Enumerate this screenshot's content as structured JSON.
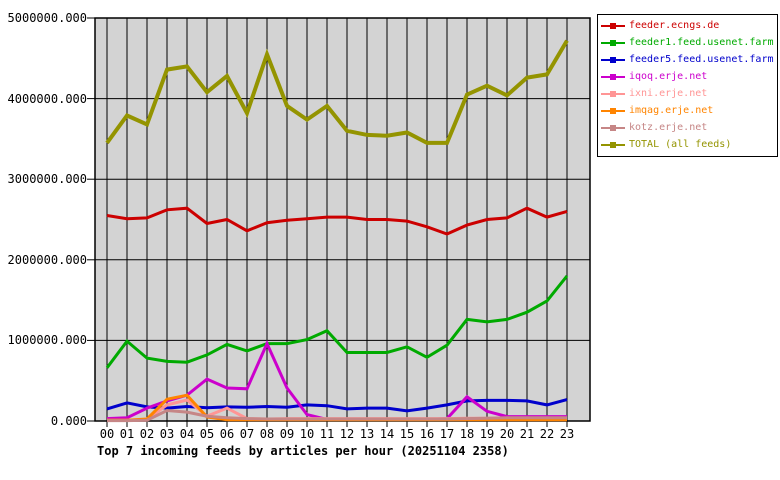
{
  "title": "Top 7 incoming feeds by articles per hour (20251104 2358)",
  "chart_data": {
    "type": "line",
    "title": "Top 7 incoming feeds by articles per hour (20251104 2358)",
    "xlabel": "",
    "ylabel": "",
    "ylim": [
      0,
      5000000
    ],
    "grid": true,
    "plot_background": "#d3d3d3",
    "legend_position": "outside-top-right",
    "x": [
      "00",
      "01",
      "02",
      "03",
      "04",
      "05",
      "06",
      "07",
      "08",
      "09",
      "10",
      "11",
      "12",
      "13",
      "14",
      "15",
      "16",
      "17",
      "18",
      "19",
      "20",
      "21",
      "22",
      "23"
    ],
    "y_ticks": [
      {
        "label": "5000000.000",
        "value": 5000000
      },
      {
        "label": "4000000.000",
        "value": 4000000
      },
      {
        "label": "3000000.000",
        "value": 3000000
      },
      {
        "label": "2000000.000",
        "value": 2000000
      },
      {
        "label": "1000000.000",
        "value": 1000000
      },
      {
        "label": "0.000",
        "value": 0
      }
    ],
    "series": [
      {
        "name": "feeder.ecngs.de",
        "color": "#cc0000",
        "width": 3,
        "values": [
          2550000,
          2510000,
          2520000,
          2620000,
          2640000,
          2450000,
          2500000,
          2360000,
          2460000,
          2490000,
          2510000,
          2530000,
          2530000,
          2500000,
          2500000,
          2480000,
          2410000,
          2320000,
          2430000,
          2500000,
          2520000,
          2640000,
          2530000,
          2600000
        ]
      },
      {
        "name": "feeder1.feed.usenet.farm",
        "color": "#00aa00",
        "width": 3,
        "values": [
          660000,
          990000,
          780000,
          740000,
          730000,
          820000,
          950000,
          870000,
          960000,
          960000,
          1010000,
          1120000,
          850000,
          850000,
          850000,
          920000,
          790000,
          940000,
          1260000,
          1230000,
          1260000,
          1350000,
          1490000,
          1800000
        ]
      },
      {
        "name": "feeder5.feed.usenet.farm",
        "color": "#0000cc",
        "width": 3,
        "values": [
          150000,
          225000,
          175000,
          160000,
          180000,
          165000,
          175000,
          170000,
          180000,
          170000,
          200000,
          190000,
          150000,
          160000,
          160000,
          125000,
          160000,
          200000,
          250000,
          255000,
          255000,
          250000,
          200000,
          265000
        ]
      },
      {
        "name": "iqoq.erje.net",
        "color": "#cc00cc",
        "width": 3,
        "values": [
          30000,
          40000,
          160000,
          250000,
          320000,
          520000,
          410000,
          400000,
          960000,
          410000,
          80000,
          20000,
          20000,
          25000,
          20000,
          20000,
          20000,
          30000,
          300000,
          120000,
          55000,
          55000,
          55000,
          55000
        ]
      },
      {
        "name": "ixni.erje.net",
        "color": "#ff9595",
        "width": 3,
        "values": [
          10000,
          10000,
          20000,
          200000,
          260000,
          60000,
          160000,
          30000,
          25000,
          30000,
          30000,
          30000,
          30000,
          30000,
          30000,
          30000,
          30000,
          30000,
          35000,
          35000,
          35000,
          35000,
          35000,
          30000
        ]
      },
      {
        "name": "imqag.erje.net",
        "color": "#ff8400",
        "width": 3,
        "values": [
          10000,
          10000,
          25000,
          270000,
          320000,
          50000,
          15000,
          15000,
          15000,
          15000,
          15000,
          15000,
          15000,
          15000,
          15000,
          15000,
          15000,
          15000,
          15000,
          15000,
          15000,
          15000,
          15000,
          15000
        ]
      },
      {
        "name": "kotz.erje.net",
        "color": "#c68686",
        "width": 3,
        "values": [
          5000,
          5000,
          10000,
          130000,
          110000,
          60000,
          40000,
          30000,
          25000,
          25000,
          25000,
          25000,
          25000,
          25000,
          25000,
          25000,
          25000,
          25000,
          30000,
          35000,
          40000,
          40000,
          40000,
          40000
        ]
      },
      {
        "name": "TOTAL (all feeds)",
        "color": "#949400",
        "width": 4,
        "values": [
          3450000,
          3790000,
          3680000,
          4360000,
          4400000,
          4080000,
          4280000,
          3820000,
          4550000,
          3910000,
          3740000,
          3910000,
          3600000,
          3550000,
          3540000,
          3580000,
          3450000,
          3450000,
          4050000,
          4160000,
          4040000,
          4260000,
          4300000,
          4720000
        ]
      }
    ]
  }
}
